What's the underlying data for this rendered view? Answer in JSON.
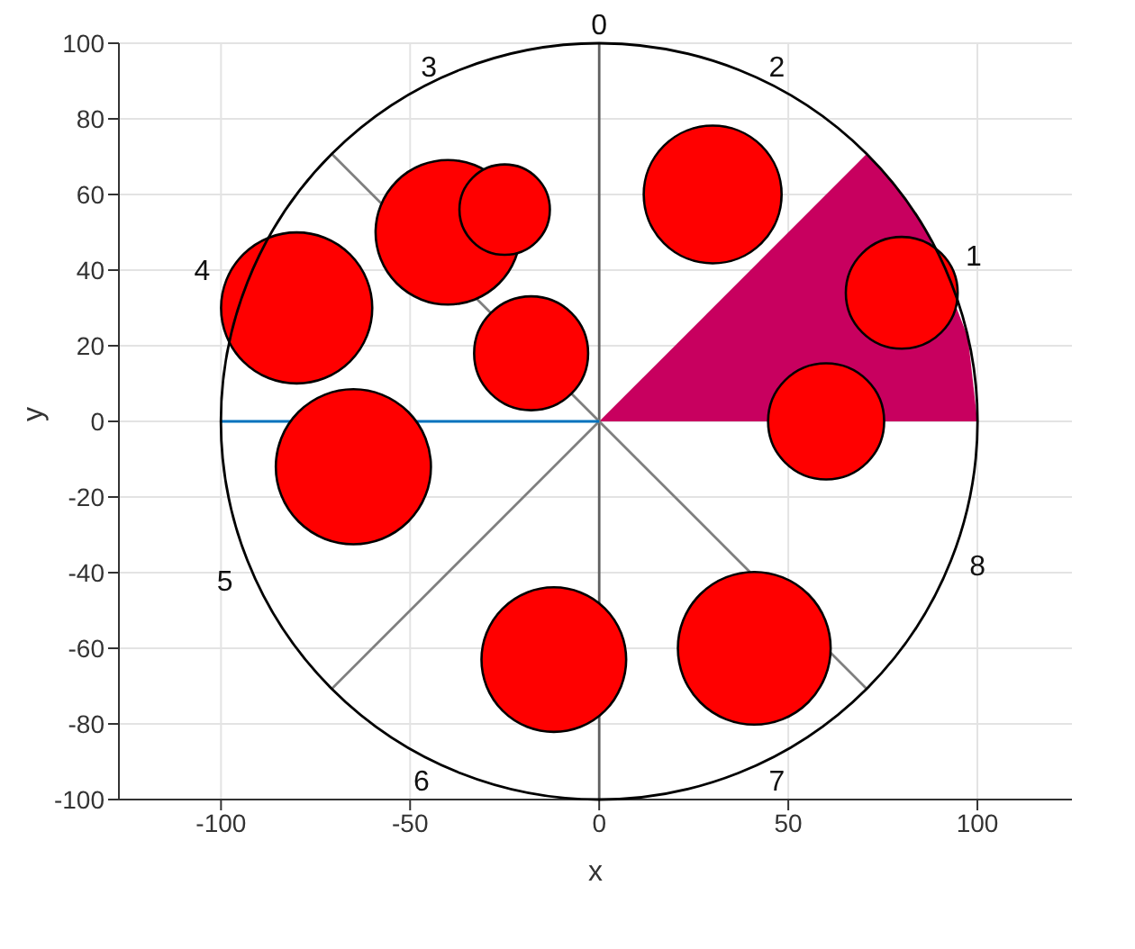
{
  "chart_data": {
    "type": "bubble",
    "xlabel": "x",
    "ylabel": "y",
    "xlim": [
      -127,
      125
    ],
    "ylim": [
      -100,
      100
    ],
    "xticks": [
      -100,
      -50,
      0,
      50,
      100
    ],
    "yticks": [
      -100,
      -80,
      -60,
      -40,
      -20,
      0,
      20,
      40,
      60,
      80,
      100
    ],
    "grid": true,
    "legend": false,
    "series": [
      {
        "type": "area",
        "color": "#c8005f",
        "x": [
          0,
          70.7,
          75,
          80,
          85,
          87,
          97.5,
          100
        ],
        "values": [
          0,
          70.7,
          66.1,
          60,
          52.7,
          49.3,
          22.2,
          0
        ]
      },
      {
        "type": "line",
        "color": "#7f7f7f",
        "x": [
          -70.7,
          70.7
        ],
        "values": [
          70.7,
          -70.7
        ]
      },
      {
        "type": "line",
        "color": "#7f7f7f",
        "x": [
          -70.7,
          0
        ],
        "values": [
          -70.7,
          0
        ]
      },
      {
        "type": "line",
        "color": "#0072bd",
        "x": [
          -100,
          0
        ],
        "values": [
          0,
          0
        ]
      },
      {
        "color": "#ff0000",
        "x": [
          80,
          30,
          60,
          -80,
          -40,
          -25,
          -18,
          -65,
          -12,
          41
        ],
        "values": [
          34,
          60,
          0,
          30,
          50,
          56,
          18,
          -12,
          -63,
          -60
        ],
        "sizes": [
          0.52,
          0.79,
          0.56,
          0.95,
          0.87,
          0.34,
          0.54,
          1,
          0.87,
          0.97
        ]
      }
    ],
    "ref_lines": [
      {
        "axis": "x",
        "value": 0,
        "color": "#606060"
      }
    ],
    "annotations": [
      "0",
      "1",
      "2",
      "3",
      "4",
      "5",
      "6",
      "7",
      "8"
    ]
  }
}
